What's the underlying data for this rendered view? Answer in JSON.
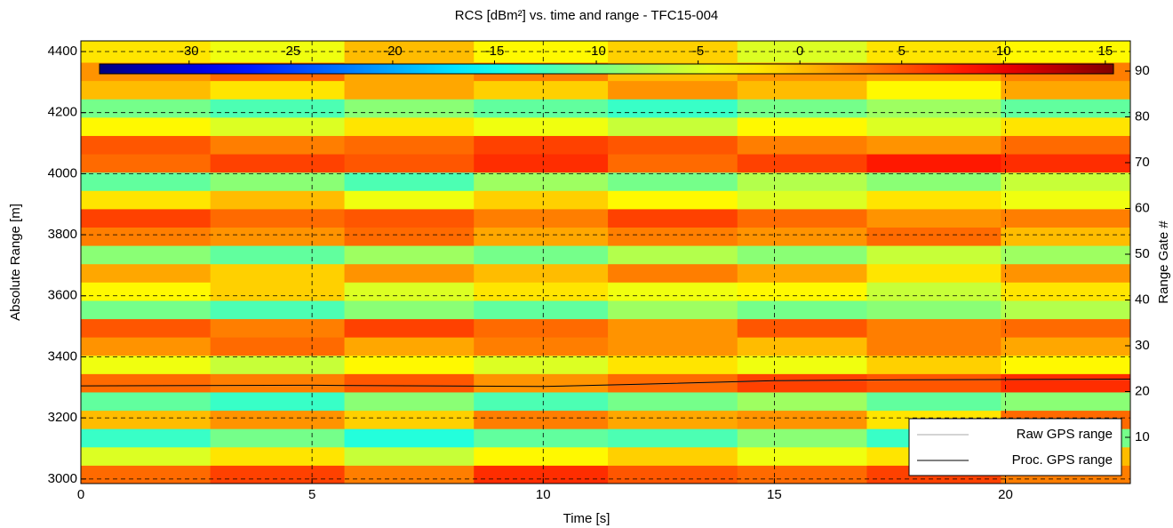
{
  "chart_data": {
    "type": "heatmap",
    "title": "RCS [dBm²] vs. time and range - TFC15-004",
    "x_label": "Time [s]",
    "y_label": "Absolute Range [m]",
    "y2_label": "Range Gate #",
    "xlim": [
      0,
      22.7
    ],
    "xticks": [
      0,
      5,
      10,
      15,
      20
    ],
    "ylim": [
      2985,
      4435
    ],
    "yticks": [
      3000,
      3200,
      3400,
      3600,
      3800,
      4000,
      4200,
      4400
    ],
    "y2lim": [
      -0.1,
      96.6
    ],
    "y2ticks": [
      10,
      20,
      30,
      40,
      50,
      60,
      70,
      80,
      90
    ],
    "grid": true,
    "colormap": "jet",
    "clim": [
      -34.4,
      15.4
    ],
    "cticks": [
      -30,
      -25,
      -20,
      -15,
      -10,
      -5,
      0,
      5,
      10,
      15
    ],
    "xbins": [
      0,
      2.8,
      5.7,
      8.5,
      11.4,
      14.2,
      17,
      19.9,
      22.7
    ],
    "ybins": [
      2985,
      3045,
      3105,
      3165,
      3225,
      3285,
      3345,
      3405,
      3465,
      3525,
      3585,
      3645,
      3705,
      3765,
      3825,
      3885,
      3945,
      4005,
      4065,
      4125,
      4185,
      4245,
      4305,
      4365,
      4435
    ],
    "z": [
      [
        4,
        6,
        3,
        7,
        5,
        4,
        6,
        3
      ],
      [
        -5,
        -2,
        -6,
        -3,
        -1,
        -4,
        -2,
        0
      ],
      [
        -13,
        -10,
        -14,
        -11,
        -12,
        -9,
        -13,
        -10
      ],
      [
        0,
        2,
        -1,
        3,
        1,
        2,
        -2,
        4
      ],
      [
        -11,
        -13,
        -9,
        -12,
        -10,
        -8,
        -11,
        -9
      ],
      [
        4,
        3,
        5,
        2,
        4,
        6,
        5,
        7
      ],
      [
        -4,
        -6,
        -3,
        -5,
        -2,
        -4,
        -1,
        -3
      ],
      [
        2,
        4,
        1,
        3,
        2,
        0,
        3,
        1
      ],
      [
        5,
        3,
        6,
        4,
        2,
        5,
        3,
        4
      ],
      [
        -10,
        -12,
        -9,
        -11,
        -8,
        -10,
        -9,
        -7
      ],
      [
        -3,
        -1,
        -5,
        -2,
        -4,
        -3,
        -6,
        -2
      ],
      [
        1,
        -1,
        2,
        0,
        3,
        1,
        -2,
        2
      ],
      [
        -9,
        -11,
        -8,
        -10,
        -7,
        -9,
        -6,
        -8
      ],
      [
        3,
        2,
        4,
        1,
        3,
        2,
        4,
        0
      ],
      [
        6,
        4,
        5,
        3,
        6,
        4,
        2,
        3
      ],
      [
        -2,
        0,
        -4,
        -1,
        -3,
        -5,
        -2,
        -4
      ],
      [
        -11,
        -9,
        -12,
        -8,
        -10,
        -7,
        -9,
        -6
      ],
      [
        4,
        6,
        5,
        7,
        4,
        6,
        8,
        7
      ],
      [
        5,
        3,
        4,
        6,
        5,
        3,
        2,
        4
      ],
      [
        -3,
        -5,
        -2,
        -4,
        -6,
        -3,
        -5,
        -2
      ],
      [
        -10,
        -12,
        -9,
        -11,
        -13,
        -10,
        -8,
        -11
      ],
      [
        0,
        -2,
        1,
        -1,
        2,
        0,
        -3,
        1
      ],
      [
        2,
        4,
        1,
        3,
        0,
        2,
        1,
        3
      ],
      [
        -2,
        -4,
        0,
        -3,
        -1,
        -5,
        -2,
        -3
      ]
    ],
    "x": [
      0,
      5,
      10,
      12,
      15,
      18,
      22.7
    ],
    "series": [
      {
        "name": "Raw GPS range",
        "color": "#8c8c8c",
        "values": [
          3305,
          3306,
          3303,
          3309,
          3321,
          3324,
          3326
        ]
      },
      {
        "name": "Proc. GPS range",
        "color": "#000000",
        "values": [
          3305,
          3307,
          3303,
          3310,
          3322,
          3325,
          3327
        ]
      }
    ]
  }
}
